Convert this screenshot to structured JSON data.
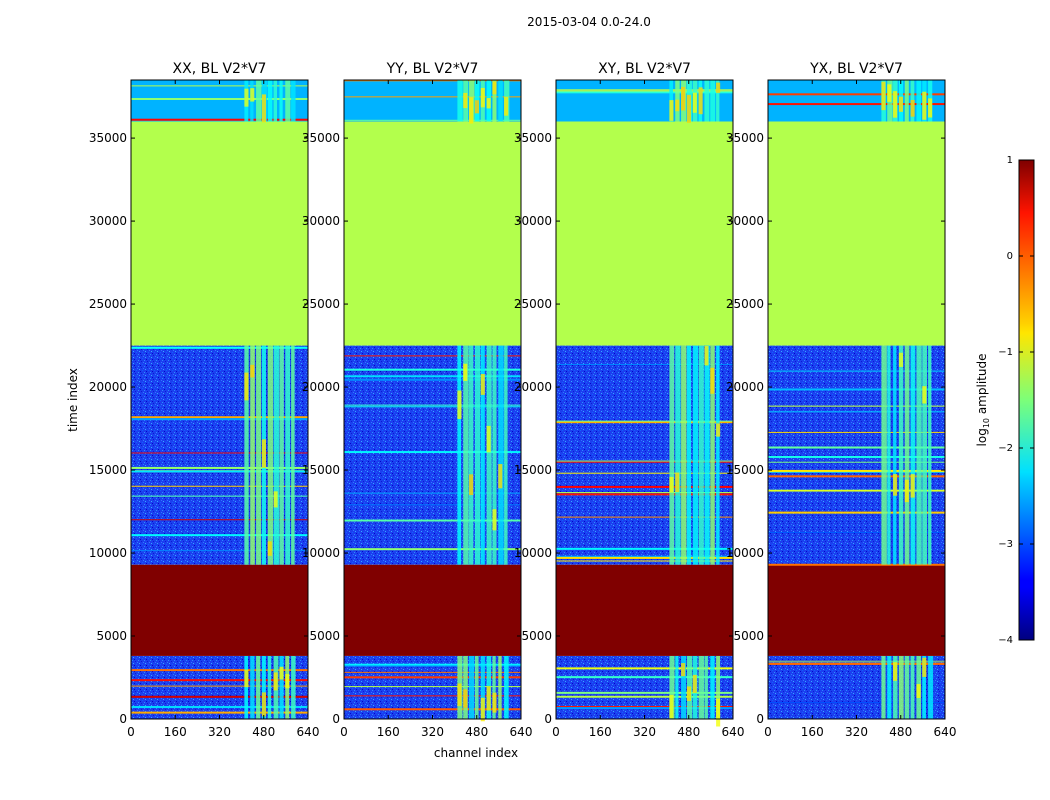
{
  "chart_data": {
    "type": "heatmap",
    "suptitle": "2015-03-04 0.0-24.0",
    "xlabel": "channel index",
    "ylabel": "time index",
    "xlim": [
      0,
      640
    ],
    "ylim": [
      0,
      38500
    ],
    "xticks": [
      0,
      160,
      320,
      480,
      640
    ],
    "yticks": [
      0,
      5000,
      10000,
      15000,
      20000,
      25000,
      30000,
      35000
    ],
    "ytick_labels": [
      "0",
      "5000",
      "10000",
      "15000",
      "20000",
      "25000",
      "30000",
      "35000"
    ],
    "panels": [
      {
        "title": "XX, BL V2*V7"
      },
      {
        "title": "YY, BL V2*V7"
      },
      {
        "title": "XY, BL V2*V7"
      },
      {
        "title": "YX, BL V2*V7"
      }
    ],
    "colorbar": {
      "label_prefix": "log",
      "label_sub": "10",
      "label_suffix": " amplitude",
      "range": [
        -4,
        1
      ],
      "ticks": [
        1,
        0,
        -1,
        -2,
        -3,
        -4
      ],
      "tick_labels": [
        "1",
        "0",
        "−1",
        "−2",
        "−3",
        "−4"
      ],
      "colormap": "jet"
    },
    "time_segments": [
      {
        "start": 0,
        "end": 3800,
        "log_amplitude": -3.0,
        "description": "low amplitude noise with bright band at channels 410-600"
      },
      {
        "start": 3800,
        "end": 9300,
        "log_amplitude": 1.0,
        "description": "saturated block"
      },
      {
        "start": 9300,
        "end": 22500,
        "log_amplitude": -3.0,
        "description": "noise with horizontal flag stripes and bright band at channels 410-600"
      },
      {
        "start": 22500,
        "end": 36000,
        "log_amplitude": -1.25,
        "description": "constant flagged value"
      },
      {
        "start": 36000,
        "end": 38500,
        "log_amplitude": -2.5,
        "description": "striped region"
      }
    ],
    "bright_channel_band": [
      410,
      600
    ]
  }
}
